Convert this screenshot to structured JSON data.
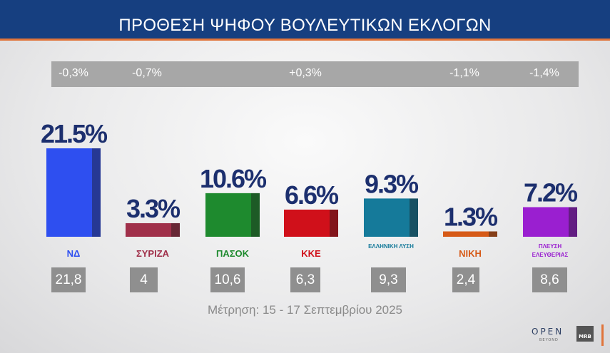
{
  "header": {
    "title": "ΠΡΟΘΕΣΗ ΨΗΦΟΥ ΒΟΥΛΕΥΤΙΚΩΝ ΕΚΛΟΓΩΝ"
  },
  "footnote": "Μέτρηση: 15 - 17 Σεπτεμβρίου 2025",
  "branding": {
    "open": "OPEN",
    "beyond": "BEYOND",
    "mrb": "MRB"
  },
  "chart_data": {
    "type": "bar",
    "title": "ΠΡΟΘΕΣΗ ΨΗΦΟΥ ΒΟΥΛΕΥΤΙΚΩΝ ΕΚΛΟΓΩΝ",
    "categories": [
      "ΝΔ",
      "ΣΥΡΙΖΑ",
      "ΠΑΣΟΚ",
      "ΚΚΕ",
      "ΕΛΛΗΝΙΚΗ ΛΥΣΗ",
      "ΝΙΚΗ",
      "ΠΛΕΥΣΗ ΕΛΕΥΘΕΡΙΑΣ"
    ],
    "logo_text": [
      "ΝΔ",
      "ΣΥΡΙΖΑ",
      "ΠΑΣΟΚ",
      "ΚΚΕ",
      "ΕΛΛΗΝΙΚΗ ΛΥΣΗ",
      "ΝΙΚΗ",
      "ΠΛΕΥΣΗ ΕΛΕΥΘΕΡΙΑΣ"
    ],
    "values": [
      21.5,
      3.3,
      10.6,
      6.6,
      9.3,
      1.3,
      7.2
    ],
    "value_labels": [
      "21.5%",
      "3.3%",
      "10.6%",
      "6.6%",
      "9.3%",
      "1.3%",
      "7.2%"
    ],
    "previous_values": [
      "21,8",
      "4",
      "10,6",
      "6,3",
      "9,3",
      "2,4",
      "8,6"
    ],
    "changes": [
      "-0,3%",
      "-0,7%",
      "",
      "+0,3%",
      "",
      "-1,1%",
      "-1,4%"
    ],
    "colors": [
      "#2e4ff0",
      "#a0304a",
      "#1e8a2e",
      "#d0101a",
      "#157a9a",
      "#d65a18",
      "#9a1fd0"
    ],
    "ylim": [
      0,
      22
    ]
  }
}
